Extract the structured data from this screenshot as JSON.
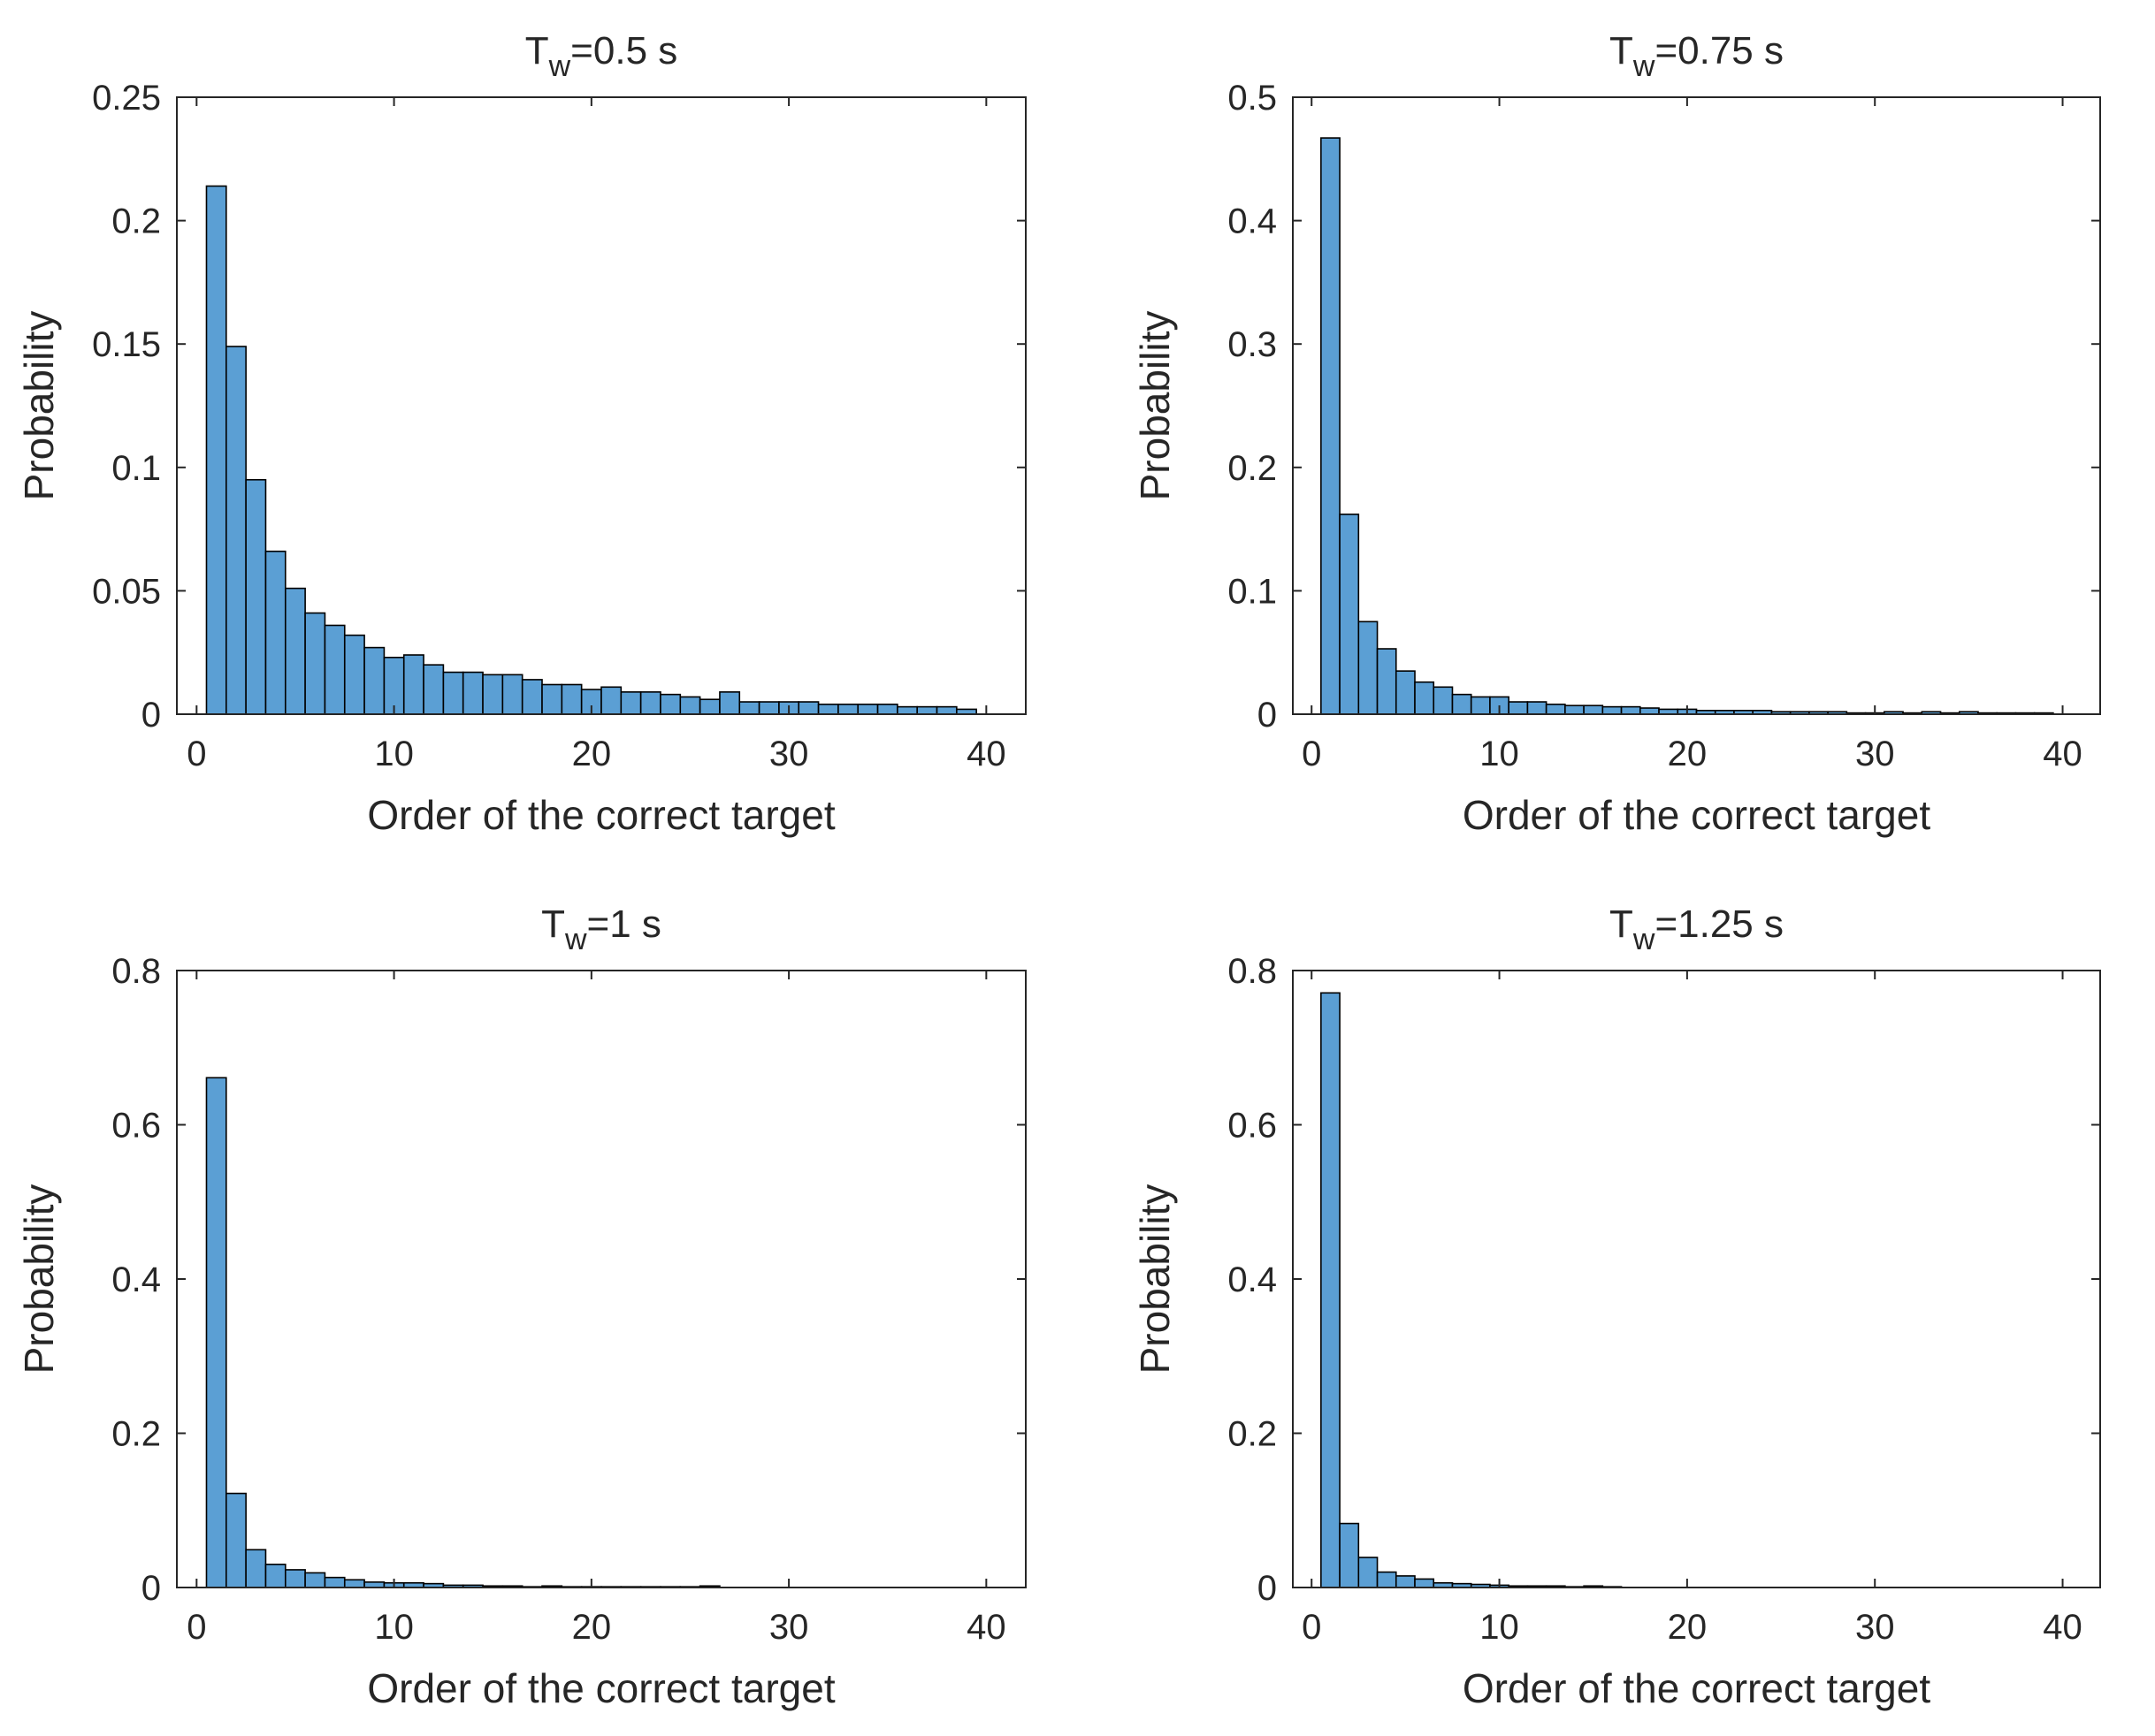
{
  "chart_data": [
    {
      "type": "bar",
      "title_main": "T",
      "title_sub": "w",
      "title_rest": "=0.5 s",
      "xlabel": "Order of the correct target",
      "ylabel": "Probability",
      "xlim": [
        -1,
        42
      ],
      "ylim": [
        0,
        0.25
      ],
      "xticks": [
        0,
        10,
        20,
        30,
        40
      ],
      "yticks": [
        0,
        0.05,
        0.1,
        0.15,
        0.2,
        0.25
      ],
      "ytick_labels": [
        "0",
        "0.05",
        "0.1",
        "0.15",
        "0.2",
        "0.25"
      ],
      "bar_color": "#5b9fd4",
      "bin_edges": [
        1,
        40
      ],
      "values": [
        0.214,
        0.149,
        0.095,
        0.066,
        0.051,
        0.041,
        0.036,
        0.032,
        0.027,
        0.023,
        0.024,
        0.02,
        0.017,
        0.017,
        0.016,
        0.016,
        0.014,
        0.012,
        0.012,
        0.01,
        0.011,
        0.009,
        0.009,
        0.008,
        0.007,
        0.006,
        0.009,
        0.005,
        0.005,
        0.005,
        0.005,
        0.004,
        0.004,
        0.004,
        0.004,
        0.003,
        0.003,
        0.003,
        0.002
      ]
    },
    {
      "type": "bar",
      "title_main": "T",
      "title_sub": "w",
      "title_rest": "=0.75 s",
      "xlabel": "Order of the correct target",
      "ylabel": "Probability",
      "xlim": [
        -1,
        42
      ],
      "ylim": [
        0,
        0.5
      ],
      "xticks": [
        0,
        10,
        20,
        30,
        40
      ],
      "yticks": [
        0,
        0.1,
        0.2,
        0.3,
        0.4,
        0.5
      ],
      "ytick_labels": [
        "0",
        "0.1",
        "0.2",
        "0.3",
        "0.4",
        "0.5"
      ],
      "bar_color": "#5b9fd4",
      "bin_edges": [
        1,
        40
      ],
      "values": [
        0.467,
        0.162,
        0.075,
        0.053,
        0.035,
        0.026,
        0.022,
        0.016,
        0.014,
        0.014,
        0.01,
        0.01,
        0.008,
        0.007,
        0.007,
        0.006,
        0.006,
        0.005,
        0.004,
        0.004,
        0.003,
        0.003,
        0.003,
        0.003,
        0.002,
        0.002,
        0.002,
        0.002,
        0.001,
        0.001,
        0.002,
        0.001,
        0.002,
        0.001,
        0.002,
        0.001,
        0.001,
        0.001,
        0.001
      ]
    },
    {
      "type": "bar",
      "title_main": "T",
      "title_sub": "w",
      "title_rest": "=1 s",
      "xlabel": "Order of the correct target",
      "ylabel": "Probability",
      "xlim": [
        -1,
        42
      ],
      "ylim": [
        0,
        0.8
      ],
      "xticks": [
        0,
        10,
        20,
        30,
        40
      ],
      "yticks": [
        0,
        0.2,
        0.4,
        0.6,
        0.8
      ],
      "ytick_labels": [
        "0",
        "0.2",
        "0.4",
        "0.6",
        "0.8"
      ],
      "bar_color": "#5b9fd4",
      "bin_edges": [
        1,
        40
      ],
      "values": [
        0.661,
        0.122,
        0.049,
        0.03,
        0.023,
        0.019,
        0.013,
        0.01,
        0.007,
        0.006,
        0.006,
        0.005,
        0.003,
        0.003,
        0.002,
        0.002,
        0.001,
        0.002,
        0.001,
        0.001,
        0.001,
        0.001,
        0.001,
        0.001,
        0.001,
        0.002,
        0.0,
        0.0,
        0.0,
        0.0,
        0.0,
        0.0,
        0.0,
        0.0,
        0.0,
        0.0,
        0.0,
        0.0,
        0.0
      ]
    },
    {
      "type": "bar",
      "title_main": "T",
      "title_sub": "w",
      "title_rest": "=1.25 s",
      "xlabel": "Order of the correct target",
      "ylabel": "Probability",
      "xlim": [
        -1,
        42
      ],
      "ylim": [
        0,
        0.8
      ],
      "xticks": [
        0,
        10,
        20,
        30,
        40
      ],
      "yticks": [
        0,
        0.2,
        0.4,
        0.6,
        0.8
      ],
      "ytick_labels": [
        "0",
        "0.2",
        "0.4",
        "0.6",
        "0.8"
      ],
      "bar_color": "#5b9fd4",
      "bin_edges": [
        1,
        40
      ],
      "values": [
        0.771,
        0.083,
        0.039,
        0.02,
        0.015,
        0.011,
        0.006,
        0.005,
        0.004,
        0.003,
        0.002,
        0.002,
        0.002,
        0.001,
        0.002,
        0.001,
        0.0,
        0.0,
        0.0,
        0.0,
        0.0,
        0.0,
        0.0,
        0.0,
        0.0,
        0.0,
        0.0,
        0.0,
        0.0,
        0.0,
        0.0,
        0.0,
        0.0,
        0.0,
        0.0,
        0.0,
        0.0,
        0.0,
        0.0
      ]
    }
  ]
}
